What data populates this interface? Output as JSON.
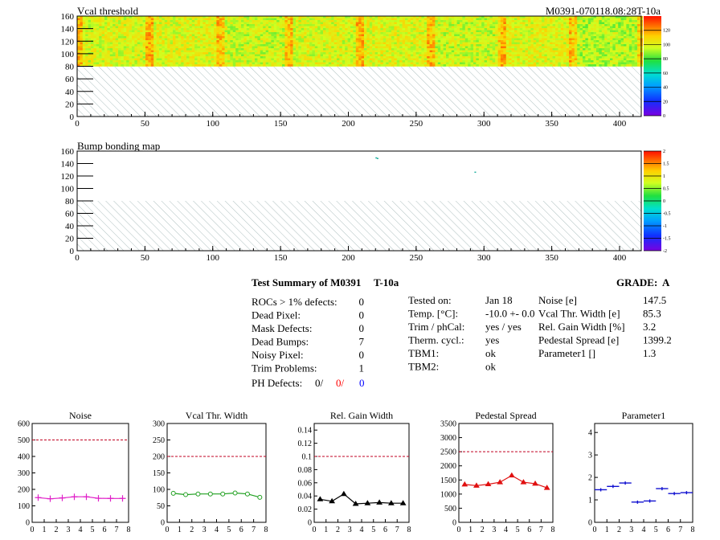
{
  "header": {
    "map1_title": "Vcal threshold",
    "module_label": "M0391-070118.08:28T-10a",
    "map2_title": "Bump bonding map"
  },
  "summary": {
    "title": "Test Summary of M0391",
    "test_tag": "T-10a",
    "grade_label": "GRADE:",
    "grade": "A",
    "col1": [
      {
        "label": "ROCs > 1% defects:",
        "value": "0"
      },
      {
        "label": "Dead Pixel:",
        "value": "0"
      },
      {
        "label": "Mask Defects:",
        "value": "0"
      },
      {
        "label": "Dead Bumps:",
        "value": "7"
      },
      {
        "label": "Noisy Pixel:",
        "value": "0"
      },
      {
        "label": "Trim Problems:",
        "value": "1"
      }
    ],
    "ph_defects": {
      "label": "PH Defects:",
      "v1": "0/",
      "v2": "0/",
      "v3": "0"
    },
    "col2": [
      {
        "label": "Tested on:",
        "value": "Jan 18"
      },
      {
        "label": "Temp. [°C]:",
        "value": "-10.0 +- 0.0"
      },
      {
        "label": "Trim / phCal:",
        "value": "yes / yes"
      },
      {
        "label": "Therm. cycl.:",
        "value": "yes"
      },
      {
        "label": "TBM1:",
        "value": "ok"
      },
      {
        "label": "TBM2:",
        "value": "ok"
      }
    ],
    "col3": [
      {
        "label": "Noise [e]",
        "value": "147.5"
      },
      {
        "label": "Vcal Thr. Width [e]",
        "value": "85.3"
      },
      {
        "label": "Rel. Gain Width [%]",
        "value": "3.2"
      },
      {
        "label": "Pedestal Spread [e]",
        "value": "1399.2"
      },
      {
        "label": "Parameter1 []",
        "value": "1.3"
      }
    ]
  },
  "colors": {
    "noise": "#e020c8",
    "vcal": "#20a020",
    "gain": "#000000",
    "pedestal": "#e01010",
    "param1": "#1010d0",
    "limit": "#c00020",
    "ph_red": "#ff0000",
    "ph_blue": "#0000ff"
  },
  "chart_data": [
    {
      "type": "heatmap",
      "title": "Vcal threshold",
      "x_ticks": [
        "0",
        "50",
        "100",
        "150",
        "200",
        "250",
        "300",
        "350",
        "400"
      ],
      "y_ticks": [
        "0",
        "20",
        "40",
        "60",
        "80",
        "100",
        "120",
        "140",
        "160"
      ],
      "xlim": [
        0,
        416
      ],
      "ylim": [
        0,
        160
      ],
      "z_ticks": [
        "0",
        "20",
        "40",
        "60",
        "80",
        "100",
        "120"
      ],
      "zlim": [
        0,
        140
      ],
      "data_region": {
        "x": [
          0,
          416
        ],
        "y": [
          80,
          160
        ]
      },
      "empty_region": {
        "x": [
          0,
          416
        ],
        "y": [
          0,
          80
        ]
      },
      "typical_value": 100
    },
    {
      "type": "heatmap",
      "title": "Bump bonding map",
      "x_ticks": [
        "0",
        "50",
        "100",
        "150",
        "200",
        "250",
        "300",
        "350",
        "400"
      ],
      "y_ticks": [
        "0",
        "20",
        "40",
        "60",
        "80",
        "100",
        "120",
        "140",
        "160"
      ],
      "xlim": [
        0,
        416
      ],
      "ylim": [
        0,
        160
      ],
      "z_ticks": [
        "-2",
        "-1.5",
        "-1",
        "-0.5",
        "0",
        "0.5",
        "1",
        "1.5",
        "2"
      ],
      "zlim": [
        -2,
        2
      ],
      "hits": [
        [
          220,
          150
        ],
        [
          221,
          149
        ],
        [
          293,
          127
        ]
      ]
    },
    {
      "type": "line",
      "title": "Noise",
      "x_ticks": [
        "0",
        "1",
        "2",
        "3",
        "4",
        "5",
        "6",
        "7",
        "8"
      ],
      "y_ticks": [
        "0",
        "100",
        "200",
        "300",
        "400",
        "500",
        "600"
      ],
      "xlim": [
        0,
        8
      ],
      "ylim": [
        0,
        600
      ],
      "limit": 500,
      "x": [
        0.5,
        1.5,
        2.5,
        3.5,
        4.5,
        5.5,
        6.5,
        7.5
      ],
      "values": [
        150,
        143,
        148,
        155,
        155,
        146,
        145,
        145
      ],
      "marker": "cross"
    },
    {
      "type": "line",
      "title": "Vcal Thr. Width",
      "x_ticks": [
        "0",
        "1",
        "2",
        "3",
        "4",
        "5",
        "6",
        "7",
        "8"
      ],
      "y_ticks": [
        "0",
        "50",
        "100",
        "150",
        "200",
        "250",
        "300"
      ],
      "xlim": [
        0,
        8
      ],
      "ylim": [
        0,
        300
      ],
      "limit": 200,
      "x": [
        0.5,
        1.5,
        2.5,
        3.5,
        4.5,
        5.5,
        6.5,
        7.5
      ],
      "values": [
        88,
        84,
        86,
        86,
        86,
        89,
        86,
        76
      ],
      "marker": "circle"
    },
    {
      "type": "line",
      "title": "Rel. Gain Width",
      "x_ticks": [
        "0",
        "1",
        "2",
        "3",
        "4",
        "5",
        "6",
        "7",
        "8"
      ],
      "y_ticks": [
        "0",
        "0.02",
        "0.04",
        "0.06",
        "0.08",
        "0.1",
        "0.12",
        "0.14"
      ],
      "xlim": [
        0,
        8
      ],
      "ylim": [
        0,
        0.15
      ],
      "limit": 0.1,
      "x": [
        0.5,
        1.5,
        2.5,
        3.5,
        4.5,
        5.5,
        6.5,
        7.5
      ],
      "values": [
        0.035,
        0.032,
        0.043,
        0.028,
        0.029,
        0.03,
        0.029,
        0.029
      ],
      "marker": "triangle"
    },
    {
      "type": "line",
      "title": "Pedestal Spread",
      "x_ticks": [
        "0",
        "1",
        "2",
        "3",
        "4",
        "5",
        "6",
        "7",
        "8"
      ],
      "y_ticks": [
        "0",
        "500",
        "1000",
        "1500",
        "2000",
        "2500",
        "3000",
        "3500"
      ],
      "xlim": [
        0,
        8
      ],
      "ylim": [
        0,
        3500
      ],
      "limit": 2500,
      "x": [
        0.5,
        1.5,
        2.5,
        3.5,
        4.5,
        5.5,
        6.5,
        7.5
      ],
      "values": [
        1340,
        1300,
        1350,
        1420,
        1660,
        1420,
        1370,
        1220
      ],
      "marker": "triangle"
    },
    {
      "type": "scatter",
      "title": "Parameter1",
      "x_ticks": [
        "0",
        "1",
        "2",
        "3",
        "4",
        "5",
        "6",
        "7",
        "8"
      ],
      "y_ticks": [
        "0",
        "1",
        "2",
        "3",
        "4"
      ],
      "xlim": [
        0,
        8
      ],
      "ylim": [
        0,
        4.4
      ],
      "x": [
        0.5,
        1.5,
        2.5,
        3.5,
        4.5,
        5.5,
        6.5,
        7.5
      ],
      "values": [
        1.45,
        1.6,
        1.75,
        0.9,
        0.95,
        1.5,
        1.28,
        1.32
      ],
      "marker": "hbar"
    }
  ]
}
